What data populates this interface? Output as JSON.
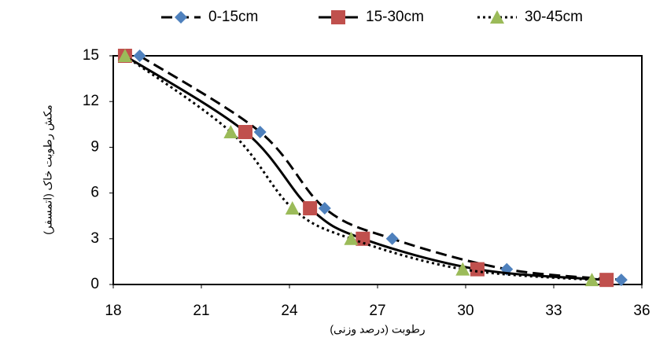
{
  "chart_data": {
    "type": "scatter",
    "x_label": "رطوبت (درصد وزنی)",
    "y_label": "مکش رطوبت خاک (اتمسفر)",
    "xlim": [
      18,
      36
    ],
    "xticks": [
      18,
      21,
      24,
      27,
      30,
      33,
      36
    ],
    "ylim": [
      0,
      15
    ],
    "yticks": [
      0,
      3,
      6,
      9,
      12,
      15
    ],
    "grid": false,
    "line_color": "#000000",
    "legend": "top",
    "series": [
      {
        "name": "0-15cm",
        "color": "#4f81bd",
        "marker": "diamond",
        "line": "dashed",
        "x": [
          18.9,
          23.0,
          25.2,
          27.5,
          31.4,
          35.3
        ],
        "values": [
          15,
          10,
          5,
          3,
          1,
          0.3
        ]
      },
      {
        "name": "15-30cm",
        "color": "#c0504d",
        "marker": "square",
        "line": "solid",
        "x": [
          18.4,
          22.5,
          24.7,
          26.5,
          30.4,
          34.8
        ],
        "values": [
          15,
          10,
          5,
          3,
          1,
          0.3
        ]
      },
      {
        "name": "30-45cm",
        "color": "#9bbb59",
        "marker": "triangle",
        "line": "dotted",
        "x": [
          18.4,
          22.0,
          24.1,
          26.1,
          29.9,
          34.3
        ],
        "values": [
          15,
          10,
          5,
          3,
          1,
          0.3
        ]
      }
    ]
  }
}
